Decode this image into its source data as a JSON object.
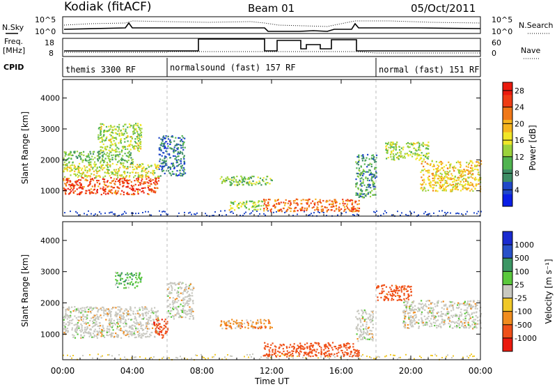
{
  "header": {
    "station": "Kodiak (fitACF)",
    "beam": "Beam 01",
    "date": "05/Oct/2011"
  },
  "side_labels": {
    "nsky": "N.Sky",
    "freq_line1": "Freq.",
    "freq_line2": "[MHz]",
    "cpid": "CPID",
    "nsearch": "N.Search",
    "nave": "Nave"
  },
  "noise_panel": {
    "left_ticks": [
      "10^5",
      "10^0"
    ],
    "right_ticks": [
      "10^5",
      "10^0"
    ]
  },
  "freq_panel": {
    "left_ticks": [
      "18",
      "8"
    ],
    "right_ticks": [
      "60",
      "0"
    ]
  },
  "cpid_labels": [
    {
      "text": "themis 3300 RF",
      "hour": 0.0
    },
    {
      "text": "normalsound (fast) 157 RF",
      "hour": 6.0
    },
    {
      "text": "normal (fast) 151 RF",
      "hour": 18.0
    }
  ],
  "colorbars": {
    "power": {
      "title": "Power [dB]",
      "ticks": [
        "28",
        "24",
        "20",
        "16",
        "12",
        "8",
        "4"
      ]
    },
    "velocity": {
      "title": "Velocity [m s⁻¹]",
      "ticks": [
        "1000",
        "500",
        "100",
        "25",
        "-25",
        "-100",
        "-500",
        "-1000"
      ]
    }
  },
  "colors": {
    "power_scale": [
      "#0a1ee6",
      "#2048c8",
      "#3c8c64",
      "#50b450",
      "#9bd23c",
      "#f0e628",
      "#f5b41e",
      "#f07818",
      "#ef3c14",
      "#eb1a0e"
    ],
    "velocity_scale": [
      "#1a2ad0",
      "#2850c8",
      "#3c9664",
      "#5ac83c",
      "#c8c8c0",
      "#f0c828",
      "#f08c1e",
      "#ef5018",
      "#eb1a0e"
    ]
  },
  "chart_data": [
    {
      "type": "heatmap",
      "title": "Power",
      "xlabel": "",
      "ylabel": "Slant Range [km]",
      "x_ticks": [
        "00:00",
        "04:00",
        "08:00",
        "12:00",
        "16:00",
        "20:00",
        "00:00"
      ],
      "y_ticks": [
        "4000",
        "3000",
        "2000",
        "1000"
      ],
      "xlim_hours": [
        0,
        24
      ],
      "ylim_km": [
        180,
        4600
      ],
      "colorbar_range_db": [
        0,
        30
      ],
      "blobs": [
        {
          "h0": 0.0,
          "h1": 5.5,
          "r0": 900,
          "r1": 1450,
          "db": 26
        },
        {
          "h0": 0.0,
          "h1": 5.5,
          "r0": 1450,
          "r1": 1900,
          "db": 16
        },
        {
          "h0": 0.0,
          "h1": 4.0,
          "r0": 1900,
          "r1": 2300,
          "db": 10
        },
        {
          "h0": 2.0,
          "h1": 4.5,
          "r0": 2300,
          "r1": 3200,
          "db": 14
        },
        {
          "h0": 5.5,
          "h1": 7.0,
          "r0": 1500,
          "r1": 2800,
          "db": 6
        },
        {
          "h0": 9.0,
          "h1": 12.0,
          "r0": 1200,
          "r1": 1500,
          "db": 12
        },
        {
          "h0": 9.5,
          "h1": 11.5,
          "r0": 400,
          "r1": 700,
          "db": 14
        },
        {
          "h0": 11.5,
          "h1": 17.0,
          "r0": 350,
          "r1": 750,
          "db": 24
        },
        {
          "h0": 16.8,
          "h1": 18.0,
          "r0": 800,
          "r1": 2200,
          "db": 8
        },
        {
          "h0": 18.5,
          "h1": 21.0,
          "r0": 2000,
          "r1": 2600,
          "db": 14
        },
        {
          "h0": 20.5,
          "h1": 24.0,
          "r0": 1000,
          "r1": 2000,
          "db": 18
        }
      ]
    },
    {
      "type": "heatmap",
      "title": "Velocity",
      "xlabel": "Time UT",
      "ylabel": "Slant Range [km]",
      "x_ticks": [
        "00:00",
        "04:00",
        "08:00",
        "12:00",
        "16:00",
        "20:00",
        "00:00"
      ],
      "y_ticks": [
        "4000",
        "3000",
        "2000",
        "1000"
      ],
      "xlim_hours": [
        0,
        24
      ],
      "ylim_km": [
        180,
        4600
      ],
      "colorbar_range_mps": [
        -1000,
        1000
      ],
      "blobs": [
        {
          "h0": 0.0,
          "h1": 5.5,
          "r0": 900,
          "r1": 1900,
          "v": 0
        },
        {
          "h0": 3.0,
          "h1": 4.5,
          "r0": 2500,
          "r1": 3000,
          "v": 80
        },
        {
          "h0": 5.2,
          "h1": 6.0,
          "r0": 900,
          "r1": 1500,
          "v": -400
        },
        {
          "h0": 6.0,
          "h1": 7.5,
          "r0": 1500,
          "r1": 2700,
          "v": 0
        },
        {
          "h0": 9.0,
          "h1": 12.0,
          "r0": 1200,
          "r1": 1500,
          "v": -60
        },
        {
          "h0": 11.5,
          "h1": 17.0,
          "r0": 300,
          "r1": 750,
          "v": -300
        },
        {
          "h0": 16.8,
          "h1": 17.8,
          "r0": 800,
          "r1": 1800,
          "v": 0
        },
        {
          "h0": 18.0,
          "h1": 20.0,
          "r0": 2100,
          "r1": 2600,
          "v": -200
        },
        {
          "h0": 19.5,
          "h1": 24.0,
          "r0": 1200,
          "r1": 2100,
          "v": 0
        }
      ]
    }
  ]
}
